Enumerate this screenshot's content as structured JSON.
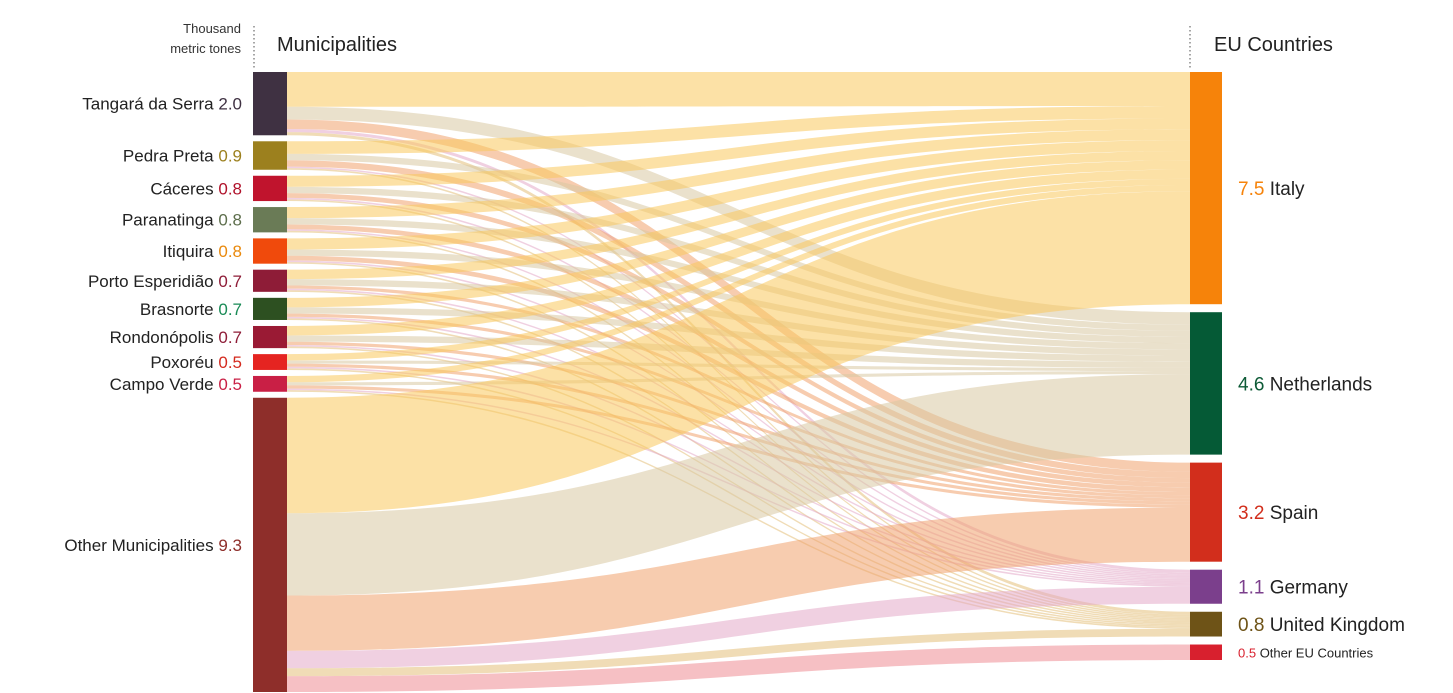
{
  "unit_label": [
    "Thousand",
    "metric tones"
  ],
  "left_header": "Municipalities",
  "right_header": "EU Countries",
  "colors": {
    "flow_default": "#eea466"
  },
  "chart_data": {
    "type": "sankey",
    "unit": "Thousand metric tones",
    "sources": [
      {
        "name": "Tangará da Serra",
        "value": 2.0,
        "value_label": "2.0",
        "color": "#3f3142",
        "label_color": "#3f3142",
        "flows": {
          "Italy": 1.1,
          "Netherlands": 0.4,
          "Spain": 0.3,
          "Germany": 0.1,
          "United Kingdom": 0.1,
          "Other EU Countries": 0.0
        }
      },
      {
        "name": "Pedra Preta",
        "value": 0.9,
        "value_label": "0.9",
        "color": "#9c801e",
        "label_color": "#9c801e",
        "flows": {
          "Italy": 0.4,
          "Netherlands": 0.2,
          "Spain": 0.2,
          "Germany": 0.05,
          "United Kingdom": 0.05,
          "Other EU Countries": 0.0
        }
      },
      {
        "name": "Cáceres",
        "value": 0.8,
        "value_label": "0.8",
        "color": "#c0142d",
        "label_color": "#b0112a",
        "flows": {
          "Italy": 0.35,
          "Netherlands": 0.2,
          "Spain": 0.15,
          "Germany": 0.05,
          "United Kingdom": 0.05,
          "Other EU Countries": 0.0
        }
      },
      {
        "name": "Paranatinga",
        "value": 0.8,
        "value_label": "0.8",
        "color": "#6a7b56",
        "label_color": "#5d6e4c",
        "flows": {
          "Italy": 0.35,
          "Netherlands": 0.2,
          "Spain": 0.15,
          "Germany": 0.05,
          "United Kingdom": 0.05,
          "Other EU Countries": 0.0
        }
      },
      {
        "name": "Itiquira",
        "value": 0.8,
        "value_label": "0.8",
        "color": "#f04a0c",
        "label_color": "#e9890d",
        "flows": {
          "Italy": 0.35,
          "Netherlands": 0.2,
          "Spain": 0.15,
          "Germany": 0.05,
          "United Kingdom": 0.05,
          "Other EU Countries": 0.0
        }
      },
      {
        "name": "Porto Esperidião",
        "value": 0.7,
        "value_label": "0.7",
        "color": "#8e1c37",
        "label_color": "#8e1c37",
        "flows": {
          "Italy": 0.3,
          "Netherlands": 0.2,
          "Spain": 0.1,
          "Germany": 0.05,
          "United Kingdom": 0.05,
          "Other EU Countries": 0.0
        }
      },
      {
        "name": "Brasnorte",
        "value": 0.7,
        "value_label": "0.7",
        "color": "#2d5021",
        "label_color": "#188a55",
        "flows": {
          "Italy": 0.3,
          "Netherlands": 0.2,
          "Spain": 0.1,
          "Germany": 0.05,
          "United Kingdom": 0.05,
          "Other EU Countries": 0.0
        }
      },
      {
        "name": "Rondonópolis",
        "value": 0.7,
        "value_label": "0.7",
        "color": "#9a1a34",
        "label_color": "#8e1c37",
        "flows": {
          "Italy": 0.3,
          "Netherlands": 0.2,
          "Spain": 0.1,
          "Germany": 0.05,
          "United Kingdom": 0.05,
          "Other EU Countries": 0.0
        }
      },
      {
        "name": "Poxoréu",
        "value": 0.5,
        "value_label": "0.5",
        "color": "#e52421",
        "label_color": "#d42a1e",
        "flows": {
          "Italy": 0.2,
          "Netherlands": 0.1,
          "Spain": 0.1,
          "Germany": 0.05,
          "United Kingdom": 0.05,
          "Other EU Countries": 0.0
        }
      },
      {
        "name": "Campo Verde",
        "value": 0.5,
        "value_label": "0.5",
        "color": "#c91f45",
        "label_color": "#c91f45",
        "flows": {
          "Italy": 0.2,
          "Netherlands": 0.1,
          "Spain": 0.1,
          "Germany": 0.05,
          "United Kingdom": 0.05,
          "Other EU Countries": 0.0
        }
      },
      {
        "name": "Other Municipalities",
        "value": 9.3,
        "value_label": "9.3",
        "color": "#8e2e2a",
        "label_color": "#8e2e2a",
        "flows": {
          "Italy": 3.65,
          "Netherlands": 2.6,
          "Spain": 1.75,
          "Germany": 0.55,
          "United Kingdom": 0.25,
          "Other EU Countries": 0.5
        }
      }
    ],
    "targets": [
      {
        "name": "Italy",
        "value": 7.5,
        "value_label": "7.5",
        "color": "#f6830a",
        "label_color": "#f6830a",
        "flow_color": "#f9c95c",
        "size": "large"
      },
      {
        "name": "Netherlands",
        "value": 4.6,
        "value_label": "4.6",
        "color": "#055a36",
        "label_color": "#0d5a36",
        "flow_color": "#d9c8a2",
        "size": "large"
      },
      {
        "name": "Spain",
        "value": 3.2,
        "value_label": "3.2",
        "color": "#d22e1c",
        "label_color": "#d22e1c",
        "flow_color": "#f0a26e",
        "size": "large"
      },
      {
        "name": "Germany",
        "value": 1.1,
        "value_label": "1.1",
        "color": "#7b3f8c",
        "label_color": "#7b3f8c",
        "flow_color": "#e4a9c8",
        "size": "large"
      },
      {
        "name": "United Kingdom",
        "value": 0.8,
        "value_label": "0.8",
        "color": "#6e5317",
        "label_color": "#6e5317",
        "flow_color": "#e3c07a",
        "size": "large"
      },
      {
        "name": "Other EU Countries",
        "value": 0.5,
        "value_label": "0.5",
        "color": "#d8202e",
        "label_color": "#d8202e",
        "flow_color": "#ef8d93",
        "size": "small"
      }
    ]
  }
}
